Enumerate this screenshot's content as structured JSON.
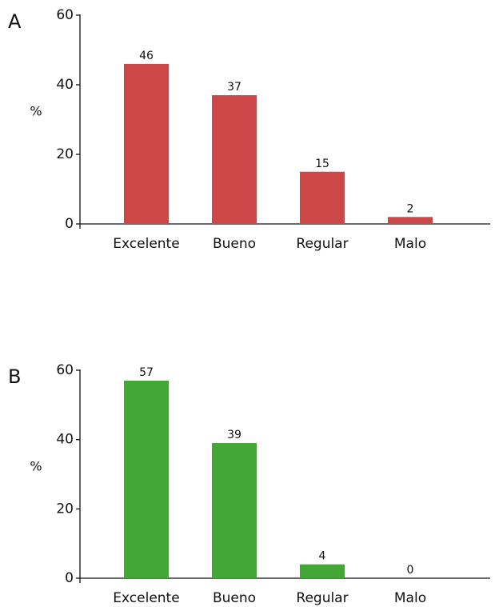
{
  "chart_data": [
    {
      "type": "bar",
      "panel": "A",
      "y_label": "%",
      "categories": [
        "Excelente",
        "Bueno",
        "Regular",
        "Malo"
      ],
      "values": [
        46,
        37,
        15,
        2
      ],
      "color": "#cc4848",
      "ylim": [
        0,
        60
      ],
      "yticks": [
        0,
        20,
        40,
        60
      ],
      "grid": false
    },
    {
      "type": "bar",
      "panel": "B",
      "y_label": "%",
      "categories": [
        "Excelente",
        "Bueno",
        "Regular",
        "Malo"
      ],
      "values": [
        57,
        39,
        4,
        0
      ],
      "color": "#43a637",
      "ylim": [
        0,
        60
      ],
      "yticks": [
        0,
        20,
        40,
        60
      ],
      "grid": false
    }
  ]
}
